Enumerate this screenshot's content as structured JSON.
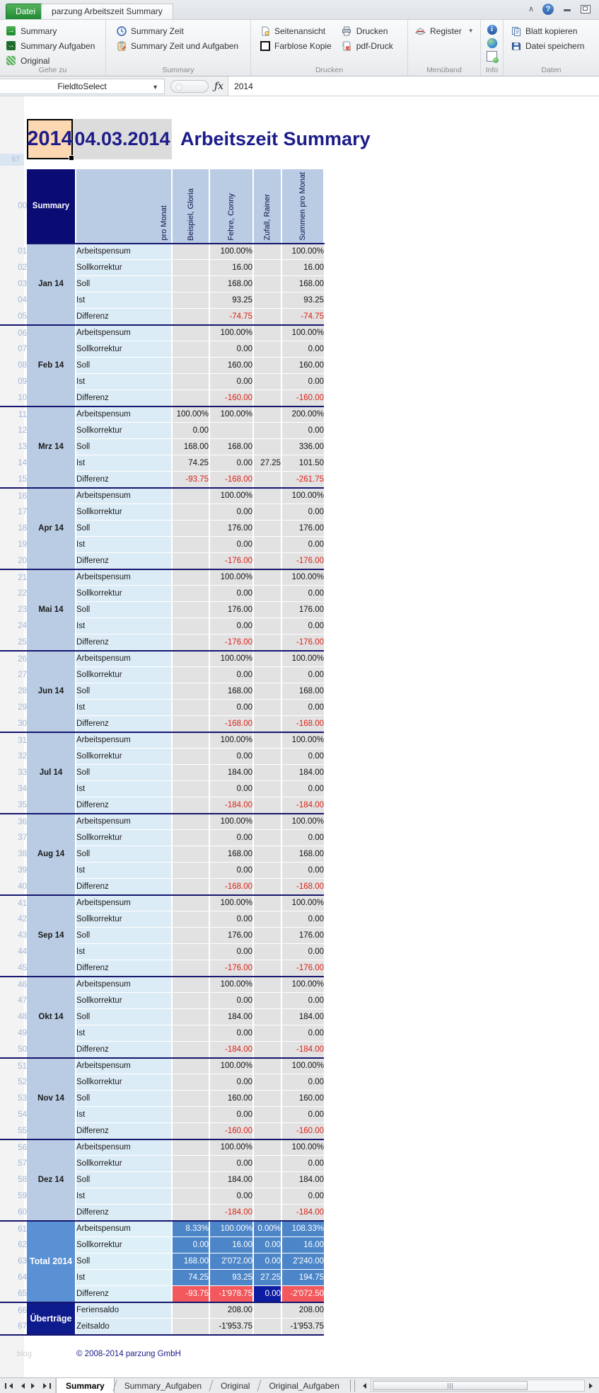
{
  "window": {
    "file_tab": "Datei",
    "doc_tab": "parzung Arbeitszeit Summary",
    "help_icon": "?"
  },
  "ribbon": {
    "groups": [
      {
        "label": "Gehe zu",
        "items": [
          {
            "label": "Summary"
          },
          {
            "label": "Summary Aufgaben"
          },
          {
            "label": "Original"
          }
        ]
      },
      {
        "label": "Summary",
        "items": [
          {
            "label": "Summary Zeit"
          },
          {
            "label": "Summary Zeit und Aufgaben"
          }
        ]
      },
      {
        "label": "Drucken",
        "items": [
          {
            "label": "Seitenansicht"
          },
          {
            "label": "Farblose Kopie"
          },
          {
            "label": "Drucken"
          },
          {
            "label": "pdf-Druck"
          }
        ]
      },
      {
        "label": "Menüband",
        "items": [
          {
            "label": "Register"
          }
        ]
      },
      {
        "label": "Info",
        "items": []
      },
      {
        "label": "Daten",
        "items": [
          {
            "label": "Blatt kopieren"
          },
          {
            "label": "Datei speichern"
          }
        ]
      }
    ]
  },
  "formula_bar": {
    "name_box": "FieldtoSelect",
    "fx": "ƒx",
    "value": "2014"
  },
  "title": {
    "year": "2014",
    "date": "04.03.2014",
    "heading": "Arbeitszeit Summary"
  },
  "table": {
    "top_row_number": "67",
    "header_row_number": "00",
    "corner": "Summary",
    "columns": [
      "pro Monat",
      "Beispiel, Gloria",
      "Fehre, Conny",
      "Zufall, Rainer",
      "Summen pro Monat"
    ],
    "metrics": [
      "Arbeitspensum",
      "Sollkorrektur",
      "Soll",
      "Ist",
      "Differenz"
    ],
    "months": [
      {
        "name": "Jan 14",
        "values": [
          [
            "",
            "100.00%",
            "",
            "100.00%"
          ],
          [
            "",
            "16.00",
            "",
            "16.00"
          ],
          [
            "",
            "168.00",
            "",
            "168.00"
          ],
          [
            "",
            "93.25",
            "",
            "93.25"
          ],
          [
            "",
            "-74.75",
            "",
            "-74.75"
          ]
        ]
      },
      {
        "name": "Feb 14",
        "values": [
          [
            "",
            "100.00%",
            "",
            "100.00%"
          ],
          [
            "",
            "0.00",
            "",
            "0.00"
          ],
          [
            "",
            "160.00",
            "",
            "160.00"
          ],
          [
            "",
            "0.00",
            "",
            "0.00"
          ],
          [
            "",
            "-160.00",
            "",
            "-160.00"
          ]
        ]
      },
      {
        "name": "Mrz 14",
        "values": [
          [
            "100.00%",
            "100.00%",
            "",
            "200.00%"
          ],
          [
            "0.00",
            "",
            "",
            "0.00"
          ],
          [
            "168.00",
            "168.00",
            "",
            "336.00"
          ],
          [
            "74.25",
            "0.00",
            "27.25",
            "101.50"
          ],
          [
            "-93.75",
            "-168.00",
            "",
            "-261.75"
          ]
        ]
      },
      {
        "name": "Apr 14",
        "values": [
          [
            "",
            "100.00%",
            "",
            "100.00%"
          ],
          [
            "",
            "0.00",
            "",
            "0.00"
          ],
          [
            "",
            "176.00",
            "",
            "176.00"
          ],
          [
            "",
            "0.00",
            "",
            "0.00"
          ],
          [
            "",
            "-176.00",
            "",
            "-176.00"
          ]
        ]
      },
      {
        "name": "Mai 14",
        "values": [
          [
            "",
            "100.00%",
            "",
            "100.00%"
          ],
          [
            "",
            "0.00",
            "",
            "0.00"
          ],
          [
            "",
            "176.00",
            "",
            "176.00"
          ],
          [
            "",
            "0.00",
            "",
            "0.00"
          ],
          [
            "",
            "-176.00",
            "",
            "-176.00"
          ]
        ]
      },
      {
        "name": "Jun 14",
        "values": [
          [
            "",
            "100.00%",
            "",
            "100.00%"
          ],
          [
            "",
            "0.00",
            "",
            "0.00"
          ],
          [
            "",
            "168.00",
            "",
            "168.00"
          ],
          [
            "",
            "0.00",
            "",
            "0.00"
          ],
          [
            "",
            "-168.00",
            "",
            "-168.00"
          ]
        ]
      },
      {
        "name": "Jul 14",
        "values": [
          [
            "",
            "100.00%",
            "",
            "100.00%"
          ],
          [
            "",
            "0.00",
            "",
            "0.00"
          ],
          [
            "",
            "184.00",
            "",
            "184.00"
          ],
          [
            "",
            "0.00",
            "",
            "0.00"
          ],
          [
            "",
            "-184.00",
            "",
            "-184.00"
          ]
        ]
      },
      {
        "name": "Aug 14",
        "values": [
          [
            "",
            "100.00%",
            "",
            "100.00%"
          ],
          [
            "",
            "0.00",
            "",
            "0.00"
          ],
          [
            "",
            "168.00",
            "",
            "168.00"
          ],
          [
            "",
            "0.00",
            "",
            "0.00"
          ],
          [
            "",
            "-168.00",
            "",
            "-168.00"
          ]
        ]
      },
      {
        "name": "Sep 14",
        "values": [
          [
            "",
            "100.00%",
            "",
            "100.00%"
          ],
          [
            "",
            "0.00",
            "",
            "0.00"
          ],
          [
            "",
            "176.00",
            "",
            "176.00"
          ],
          [
            "",
            "0.00",
            "",
            "0.00"
          ],
          [
            "",
            "-176.00",
            "",
            "-176.00"
          ]
        ]
      },
      {
        "name": "Okt 14",
        "values": [
          [
            "",
            "100.00%",
            "",
            "100.00%"
          ],
          [
            "",
            "0.00",
            "",
            "0.00"
          ],
          [
            "",
            "184.00",
            "",
            "184.00"
          ],
          [
            "",
            "0.00",
            "",
            "0.00"
          ],
          [
            "",
            "-184.00",
            "",
            "-184.00"
          ]
        ]
      },
      {
        "name": "Nov 14",
        "values": [
          [
            "",
            "100.00%",
            "",
            "100.00%"
          ],
          [
            "",
            "0.00",
            "",
            "0.00"
          ],
          [
            "",
            "160.00",
            "",
            "160.00"
          ],
          [
            "",
            "0.00",
            "",
            "0.00"
          ],
          [
            "",
            "-160.00",
            "",
            "-160.00"
          ]
        ]
      },
      {
        "name": "Dez 14",
        "values": [
          [
            "",
            "100.00%",
            "",
            "100.00%"
          ],
          [
            "",
            "0.00",
            "",
            "0.00"
          ],
          [
            "",
            "184.00",
            "",
            "184.00"
          ],
          [
            "",
            "0.00",
            "",
            "0.00"
          ],
          [
            "",
            "-184.00",
            "",
            "-184.00"
          ]
        ]
      }
    ],
    "total": {
      "name": "Total 2014",
      "values": [
        [
          "8.33%",
          "100.00%",
          "0.00%",
          "108.33%"
        ],
        [
          "0.00",
          "16.00",
          "0.00",
          "16.00"
        ],
        [
          "168.00",
          "2'072.00",
          "0.00",
          "2'240.00"
        ],
        [
          "74.25",
          "93.25",
          "27.25",
          "194.75"
        ],
        [
          "-93.75",
          "-1'978.75",
          "0.00",
          "-2'072.50"
        ]
      ]
    },
    "carryover": {
      "name": "Überträge",
      "rows": [
        {
          "label": "Feriensaldo",
          "values": [
            "",
            "208.00",
            "",
            "208.00"
          ]
        },
        {
          "label": "Zeitsaldo",
          "values": [
            "",
            "-1'953.75",
            "",
            "-1'953.75"
          ]
        }
      ]
    }
  },
  "footer": {
    "watermark": "blog",
    "copyright": "© 2008-2014 parzung GmbH"
  },
  "sheet_tabs": {
    "items": [
      "Summary",
      "Summary_Aufgaben",
      "Original",
      "Original_Aufgaben"
    ],
    "active": "Summary"
  }
}
